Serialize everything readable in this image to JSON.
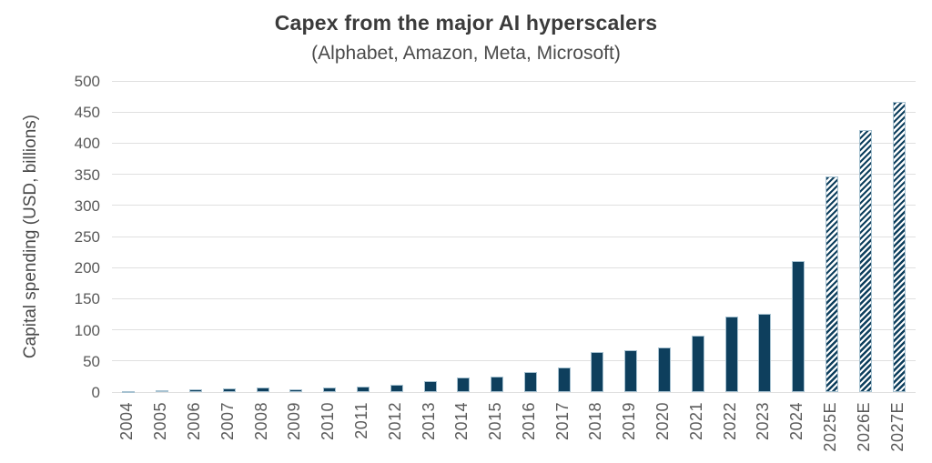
{
  "header": {
    "title": "Capex from the major AI hyperscalers",
    "subtitle": "(Alphabet, Amazon, Meta, Microsoft)"
  },
  "chart_data": {
    "type": "bar",
    "title": "Capex from the major AI hyperscalers",
    "subtitle": "(Alphabet, Amazon, Meta, Microsoft)",
    "xlabel": "",
    "ylabel": "Capital spending (USD, billions)",
    "ylim": [
      0,
      500
    ],
    "ytick_step": 50,
    "ytick_labels": [
      "0",
      "50",
      "100",
      "150",
      "200",
      "250",
      "300",
      "350",
      "400",
      "450",
      "500"
    ],
    "grid": true,
    "legend": "none",
    "categories": [
      "2004",
      "2005",
      "2006",
      "2007",
      "2008",
      "2009",
      "2010",
      "2011",
      "2012",
      "2013",
      "2014",
      "2015",
      "2016",
      "2017",
      "2018",
      "2019",
      "2020",
      "2021",
      "2022",
      "2023",
      "2024",
      "2025E",
      "2026E",
      "2027E"
    ],
    "values": [
      2,
      3,
      5,
      6,
      8,
      5,
      8,
      9,
      11,
      18,
      23,
      25,
      32,
      40,
      64,
      67,
      72,
      91,
      122,
      126,
      210,
      347,
      421,
      466
    ],
    "estimated": [
      false,
      false,
      false,
      false,
      false,
      false,
      false,
      false,
      false,
      false,
      false,
      false,
      false,
      false,
      false,
      false,
      false,
      false,
      false,
      false,
      false,
      true,
      true,
      true
    ],
    "estimate_style": "diagonal-hatch",
    "colors": {
      "bar": "#0e3f5d",
      "bar_border": "#a7c2d1",
      "gridline": "#e0e0e0",
      "tick_text": "#595959",
      "title_text": "#3b3b3b",
      "background": "#ffffff"
    }
  }
}
